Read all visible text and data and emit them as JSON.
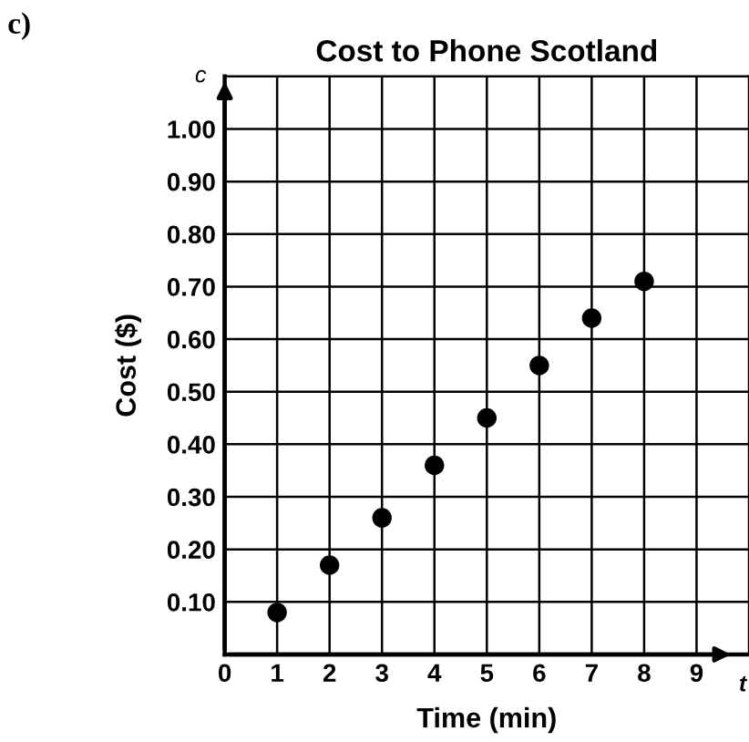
{
  "chart_data": {
    "type": "scatter",
    "title": "Cost to Phone Scotland",
    "xlabel": "Time (min)",
    "ylabel": "Cost ($)",
    "annotations": [
      "c)",
      "c",
      "t"
    ],
    "x": [
      1,
      2,
      3,
      4,
      5,
      6,
      7,
      8
    ],
    "series": [
      {
        "color": "#000000",
        "values": [
          0.08,
          0.17,
          0.26,
          0.36,
          0.45,
          0.55,
          0.64,
          0.71
        ]
      }
    ],
    "xlim": [
      0,
      10
    ],
    "ylim": [
      0,
      1.1
    ],
    "xticks": [
      0,
      1,
      2,
      3,
      4,
      5,
      6,
      7,
      8,
      9
    ],
    "yticks": [
      {
        "value": 0.1,
        "label": "0.10"
      },
      {
        "value": 0.2,
        "label": "0.20"
      },
      {
        "value": 0.3,
        "label": "0.30"
      },
      {
        "value": 0.4,
        "label": "0.40"
      },
      {
        "value": 0.5,
        "label": "0.50"
      },
      {
        "value": 0.6,
        "label": "0.60"
      },
      {
        "value": 0.7,
        "label": "0.70"
      },
      {
        "value": 0.8,
        "label": "0.80"
      },
      {
        "value": 0.9,
        "label": "0.90"
      },
      {
        "value": 1.0,
        "label": "1.00"
      }
    ],
    "grid": true,
    "marker": "circle"
  }
}
